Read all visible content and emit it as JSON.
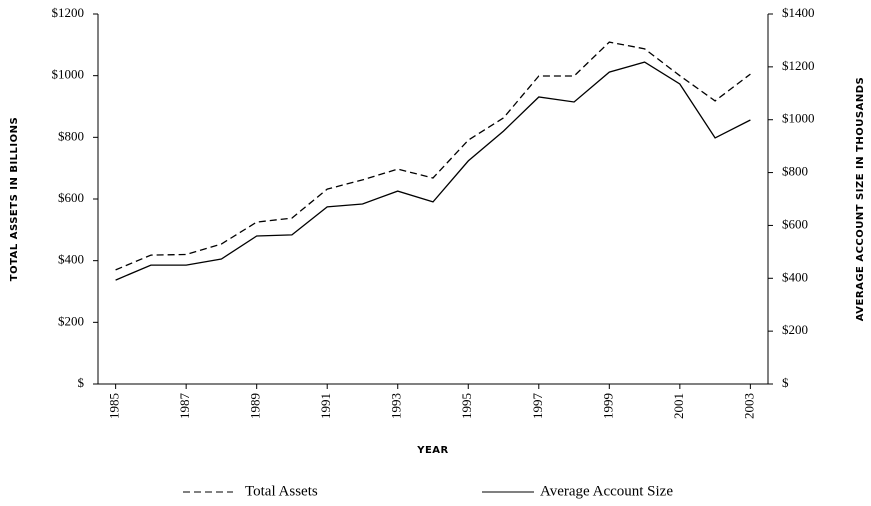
{
  "chart_data": {
    "type": "line",
    "x_label": "YEAR",
    "y_label": "TOTAL ASSETS IN BILLIONS",
    "y2_label": "AVERAGE ACCOUNT SIZE IN THOUSANDS",
    "x": [
      1985,
      1986,
      1987,
      1988,
      1989,
      1990,
      1991,
      1992,
      1993,
      1994,
      1995,
      1996,
      1997,
      1998,
      1999,
      2000,
      2001,
      2002,
      2003
    ],
    "series": [
      {
        "name": "Total Assets",
        "color": "#000000",
        "line_style": "dashed",
        "axis": "y",
        "values": [
          370,
          418,
          420,
          454,
          525,
          538,
          632,
          662,
          697,
          668,
          791,
          863,
          999,
          999,
          1109,
          1087,
          1000,
          918,
          1005
        ]
      },
      {
        "name": "Average Account Size",
        "color": "#000000",
        "line_style": "solid",
        "axis": "y2",
        "values": [
          393,
          450,
          450,
          473,
          560,
          564,
          670,
          681,
          730,
          689,
          844,
          957,
          1086,
          1067,
          1180,
          1218,
          1135,
          931,
          999
        ]
      }
    ],
    "xlim": [
      1984.5,
      2003.5
    ],
    "xticks": [
      1985,
      1987,
      1989,
      1991,
      1993,
      1995,
      1997,
      1999,
      2001,
      2003
    ],
    "ylim": [
      0,
      1200
    ],
    "yticks": [
      {
        "value": 0,
        "label": "$"
      },
      {
        "value": 200,
        "label": "$200"
      },
      {
        "value": 400,
        "label": "$400"
      },
      {
        "value": 600,
        "label": "$600"
      },
      {
        "value": 800,
        "label": "$800"
      },
      {
        "value": 1000,
        "label": "$1000"
      },
      {
        "value": 1200,
        "label": "$1200"
      }
    ],
    "y2lim": [
      0,
      1400
    ],
    "y2ticks": [
      {
        "value": 0,
        "label": "$"
      },
      {
        "value": 200,
        "label": "$200"
      },
      {
        "value": 400,
        "label": "$400"
      },
      {
        "value": 600,
        "label": "$600"
      },
      {
        "value": 800,
        "label": "$800"
      },
      {
        "value": 1000,
        "label": "$1000"
      },
      {
        "value": 1200,
        "label": "$1200"
      },
      {
        "value": 1400,
        "label": "$1400"
      }
    ],
    "grid": false,
    "legend": "bottom"
  }
}
